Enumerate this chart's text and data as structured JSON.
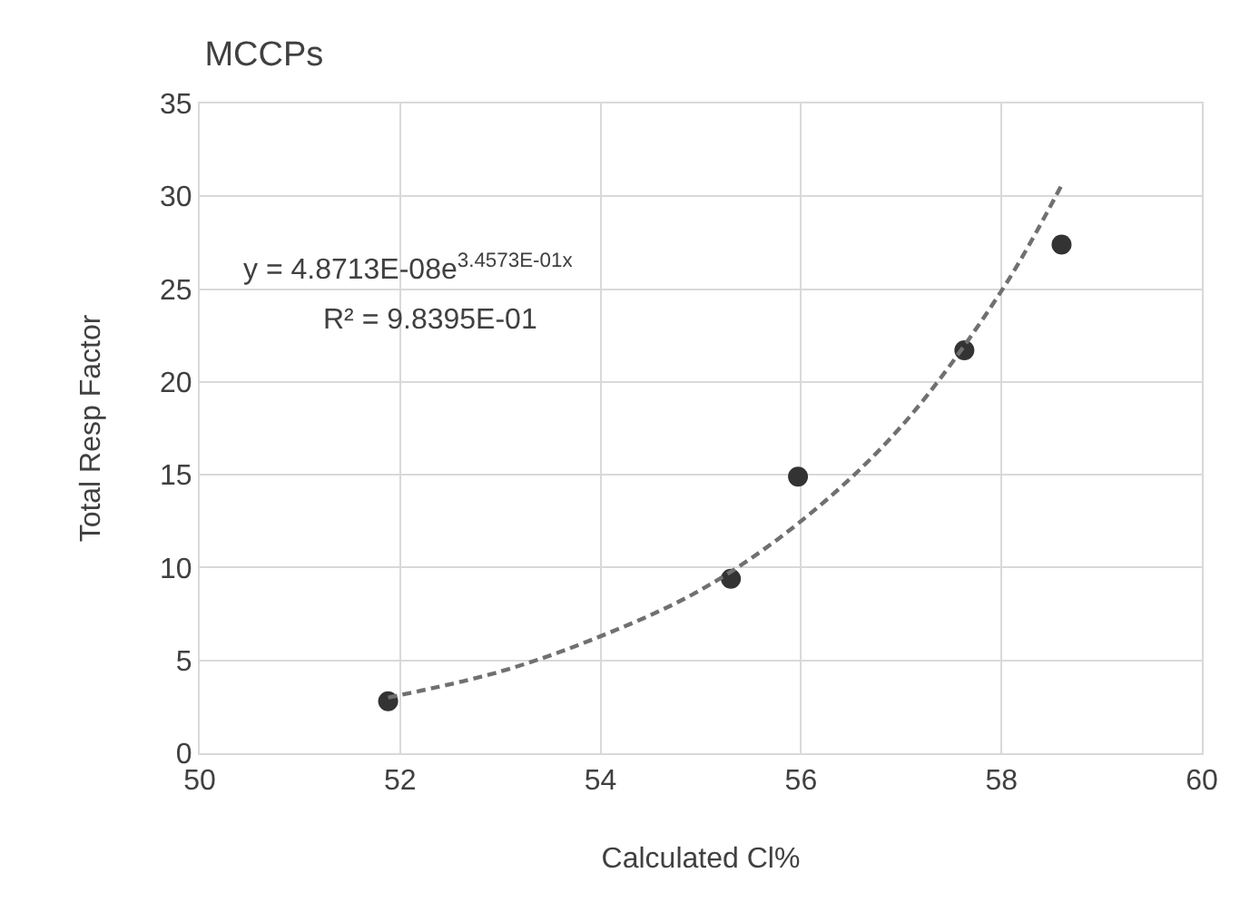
{
  "chart_data": {
    "type": "scatter",
    "title": "MCCPs",
    "xlabel": "Calculated Cl%",
    "ylabel": "Total Resp Factor",
    "xlim": [
      50,
      60
    ],
    "xticks": [
      50,
      52,
      54,
      56,
      58,
      60
    ],
    "ylim": [
      0,
      35
    ],
    "yticks": [
      0,
      5,
      10,
      15,
      20,
      25,
      30,
      35
    ],
    "grid": true,
    "marker": "circle",
    "series": [
      {
        "color": "#333333",
        "x": [
          51.88,
          55.3,
          55.97,
          57.63,
          58.6
        ],
        "values": [
          2.8,
          9.4,
          14.9,
          21.7,
          27.4
        ]
      },
      {
        "type": "line",
        "color": "#707070",
        "line_style": "dashed",
        "marker": "none",
        "x": [
          51.88,
          53,
          54,
          55,
          56,
          57,
          58,
          58.6
        ],
        "values": [
          3.0,
          4.4,
          6.3,
          8.8,
          12.5,
          17.6,
          24.9,
          30.6
        ]
      }
    ],
    "annotations": [
      "y = 4.8713E-08e$^{3.4573E-01x}$",
      "R² = 9.8395E-01"
    ]
  }
}
